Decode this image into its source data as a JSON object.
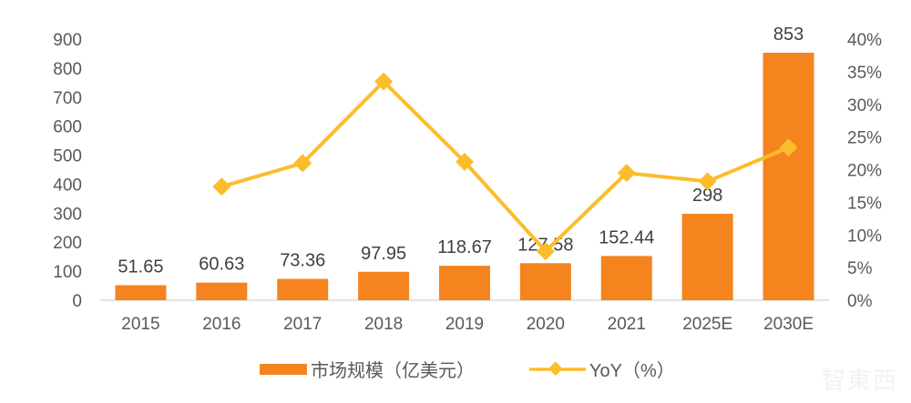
{
  "chart_data": {
    "type": "bar+line",
    "title": "",
    "categories": [
      "2015",
      "2016",
      "2017",
      "2018",
      "2019",
      "2020",
      "2021",
      "2025E",
      "2030E"
    ],
    "series": [
      {
        "name": "市场规模（亿美元）",
        "type": "bar",
        "axis": "left",
        "color": "#F5841F",
        "values": [
          51.65,
          60.63,
          73.36,
          97.95,
          118.67,
          127.58,
          152.44,
          298,
          853
        ],
        "labels": [
          "51.65",
          "60.63",
          "73.36",
          "97.95",
          "118.67",
          "127.58",
          "152.44",
          "298",
          "853"
        ]
      },
      {
        "name": "YoY（%）",
        "type": "line",
        "axis": "right",
        "color": "#FBBD2B",
        "marker": "diamond",
        "values": [
          null,
          17.4,
          21.0,
          33.5,
          21.2,
          7.5,
          19.5,
          18.2,
          23.4
        ]
      }
    ],
    "left_axis": {
      "ylim": [
        0,
        900
      ],
      "ticks": [
        "0",
        "100",
        "200",
        "300",
        "400",
        "500",
        "600",
        "700",
        "800",
        "900"
      ]
    },
    "right_axis": {
      "ylim": [
        0,
        40
      ],
      "ticks": [
        "0%",
        "5%",
        "10%",
        "15%",
        "20%",
        "25%",
        "30%",
        "35%",
        "40%"
      ]
    },
    "xlabel": "",
    "ylabel": "",
    "grid": false,
    "legend_position": "bottom"
  },
  "legend": {
    "bar_label": "市场规模（亿美元）",
    "line_label": "YoY（%）"
  },
  "watermark": "智東西"
}
